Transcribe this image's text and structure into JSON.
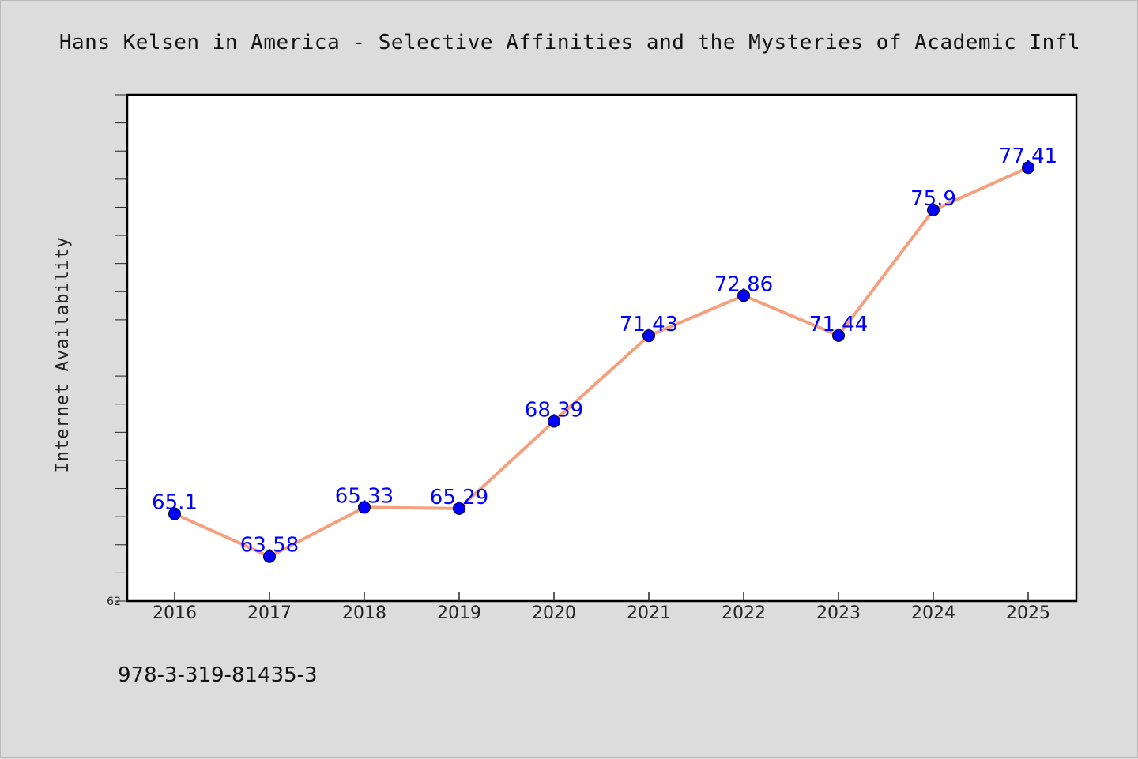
{
  "chart_data": {
    "type": "line",
    "title": "Hans Kelsen in America - Selective Affinities and the Mysteries of Academic Infl",
    "xlabel": "",
    "ylabel": "Internet Availability",
    "categories": [
      "2016",
      "2017",
      "2018",
      "2019",
      "2020",
      "2021",
      "2022",
      "2023",
      "2024",
      "2025"
    ],
    "series": [
      {
        "values": [
          65.1,
          63.58,
          65.33,
          65.29,
          68.39,
          71.43,
          72.86,
          71.44,
          75.9,
          77.41
        ],
        "labels": [
          "65.1",
          "63.58",
          "65.33",
          "65.29",
          "68.39",
          "71.43",
          "72.86",
          "71.44",
          "75.9",
          "77.41"
        ]
      }
    ],
    "ylim": [
      62,
      80
    ],
    "y_tick_labels": [
      "62"
    ],
    "grid": false,
    "line_color": "#f4a07e",
    "marker_color": "#0000ff",
    "label_color": "#0000ff"
  },
  "footer_text": "978-3-319-81435-3"
}
